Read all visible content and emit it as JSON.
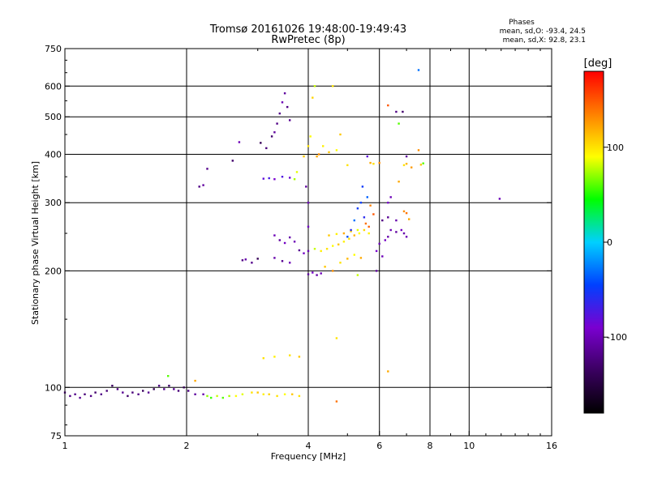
{
  "chart_data": {
    "type": "scatter",
    "title": "Tromsø 20161026 19:48:00-19:49:43",
    "subtitle": "RwPretec (8p)",
    "xlabel": "Frequency [MHz]",
    "ylabel": "Stationary phase Virtual Height [km]",
    "x_scale": "log",
    "y_scale": "log",
    "xlim": [
      1,
      16
    ],
    "ylim": [
      75,
      750
    ],
    "x_ticks": [
      1,
      2,
      4,
      6,
      8,
      10,
      16
    ],
    "y_ticks": [
      75,
      100,
      200,
      300,
      400,
      500,
      600,
      750
    ],
    "grid": true,
    "stats": {
      "heading": "Phases",
      "line_o": "mean, sd,O:  -93.4, 24.5",
      "line_x": "mean, sd,X:  92.8, 23.1"
    },
    "colorbar": {
      "label": "[deg]",
      "range": [
        -180,
        180
      ],
      "ticks": [
        -100,
        0,
        100
      ],
      "colors": [
        "#000000",
        "#3a0060",
        "#7a00d0",
        "#0040ff",
        "#00d0ff",
        "#00ff00",
        "#ffff00",
        "#ff8000",
        "#ff0000"
      ]
    },
    "series": [
      {
        "points": [
          [
            1.0,
            97,
            -115
          ],
          [
            1.03,
            95,
            -120
          ],
          [
            1.06,
            96,
            -118
          ],
          [
            1.09,
            94,
            -115
          ],
          [
            1.12,
            96,
            -125
          ],
          [
            1.16,
            95,
            -120
          ],
          [
            1.19,
            97,
            -130
          ],
          [
            1.23,
            96,
            -118
          ],
          [
            1.27,
            98,
            -125
          ],
          [
            1.31,
            101,
            -135
          ],
          [
            1.35,
            99,
            -122
          ],
          [
            1.39,
            97,
            -115
          ],
          [
            1.43,
            95,
            -130
          ],
          [
            1.47,
            97,
            -125
          ],
          [
            1.52,
            96,
            -120
          ],
          [
            1.56,
            98,
            -135
          ],
          [
            1.61,
            97,
            -115
          ],
          [
            1.66,
            99,
            -140
          ],
          [
            1.71,
            101,
            -120
          ],
          [
            1.76,
            99,
            -118
          ],
          [
            1.81,
            101,
            -130
          ],
          [
            1.86,
            99,
            -115
          ],
          [
            1.91,
            98,
            -125
          ],
          [
            1.97,
            100,
            -140
          ],
          [
            2.02,
            98,
            -120
          ],
          [
            2.1,
            96,
            -110
          ],
          [
            2.2,
            96,
            -105
          ],
          [
            2.25,
            95,
            70
          ],
          [
            2.3,
            94,
            55
          ],
          [
            2.38,
            95,
            80
          ],
          [
            2.46,
            94,
            60
          ],
          [
            2.55,
            95,
            75
          ],
          [
            2.65,
            95,
            90
          ],
          [
            2.75,
            96,
            85
          ],
          [
            2.9,
            97,
            100
          ],
          [
            3.0,
            97,
            110
          ],
          [
            3.1,
            96,
            95
          ],
          [
            3.2,
            96,
            105
          ],
          [
            3.35,
            95,
            100
          ],
          [
            3.5,
            96,
            90
          ],
          [
            3.65,
            96,
            110
          ],
          [
            3.8,
            95,
            100
          ],
          [
            1.8,
            107,
            60
          ],
          [
            2.1,
            104,
            120
          ],
          [
            3.1,
            119,
            100
          ],
          [
            3.3,
            120,
            95
          ],
          [
            3.6,
            121,
            100
          ],
          [
            3.8,
            120,
            110
          ],
          [
            2.15,
            330,
            -120
          ],
          [
            2.2,
            333,
            -110
          ],
          [
            2.25,
            367,
            -118
          ],
          [
            2.6,
            385,
            -130
          ],
          [
            2.7,
            430,
            -100
          ],
          [
            2.75,
            213,
            -120
          ],
          [
            2.8,
            214,
            -105
          ],
          [
            2.9,
            210,
            -118
          ],
          [
            3.0,
            215,
            -140
          ],
          [
            3.05,
            428,
            -140
          ],
          [
            3.15,
            415,
            -125
          ],
          [
            3.25,
            445,
            -130
          ],
          [
            3.3,
            456,
            -110
          ],
          [
            3.35,
            480,
            -120
          ],
          [
            3.4,
            510,
            -118
          ],
          [
            3.45,
            545,
            -100
          ],
          [
            3.5,
            575,
            -110
          ],
          [
            3.55,
            530,
            -120
          ],
          [
            3.6,
            490,
            -115
          ],
          [
            3.1,
            346,
            -80
          ],
          [
            3.2,
            347,
            -70
          ],
          [
            3.3,
            345,
            -90
          ],
          [
            3.45,
            350,
            -75
          ],
          [
            3.6,
            348,
            -85
          ],
          [
            3.7,
            345,
            75
          ],
          [
            3.75,
            360,
            85
          ],
          [
            3.9,
            395,
            110
          ],
          [
            4.0,
            420,
            100
          ],
          [
            4.05,
            445,
            90
          ],
          [
            4.1,
            560,
            105
          ],
          [
            4.15,
            600,
            80
          ],
          [
            4.2,
            395,
            120
          ],
          [
            4.25,
            400,
            130
          ],
          [
            4.35,
            420,
            95
          ],
          [
            4.5,
            405,
            110
          ],
          [
            3.95,
            330,
            -110
          ],
          [
            4.0,
            300,
            -100
          ],
          [
            4.0,
            260,
            -95
          ],
          [
            3.3,
            247,
            -100
          ],
          [
            3.4,
            240,
            -110
          ],
          [
            3.5,
            236,
            -95
          ],
          [
            3.6,
            244,
            -105
          ],
          [
            3.7,
            238,
            -100
          ],
          [
            3.8,
            226,
            -115
          ],
          [
            3.9,
            222,
            -95
          ],
          [
            4.0,
            225,
            -100
          ],
          [
            3.3,
            216,
            -105
          ],
          [
            3.45,
            212,
            -115
          ],
          [
            3.6,
            210,
            -100
          ],
          [
            4.0,
            196,
            -110
          ],
          [
            4.1,
            198,
            -95
          ],
          [
            4.2,
            195,
            -105
          ],
          [
            4.3,
            197,
            -100
          ],
          [
            4.15,
            228,
            80
          ],
          [
            4.3,
            225,
            95
          ],
          [
            4.45,
            228,
            100
          ],
          [
            4.6,
            232,
            90
          ],
          [
            4.75,
            234,
            110
          ],
          [
            4.9,
            238,
            95
          ],
          [
            5.05,
            242,
            100
          ],
          [
            5.2,
            247,
            115
          ],
          [
            5.35,
            250,
            90
          ],
          [
            5.5,
            255,
            105
          ],
          [
            5.65,
            250,
            95
          ],
          [
            4.5,
            247,
            110
          ],
          [
            4.7,
            249,
            95
          ],
          [
            4.9,
            250,
            120
          ],
          [
            5.1,
            253,
            105
          ],
          [
            5.3,
            255,
            85
          ],
          [
            4.4,
            205,
            110
          ],
          [
            4.6,
            200,
            130
          ],
          [
            4.8,
            210,
            100
          ],
          [
            5.0,
            215,
            115
          ],
          [
            5.2,
            220,
            90
          ],
          [
            5.4,
            216,
            120
          ],
          [
            5.0,
            245,
            -40
          ],
          [
            5.1,
            255,
            -60
          ],
          [
            5.2,
            270,
            -30
          ],
          [
            5.3,
            290,
            -50
          ],
          [
            5.4,
            300,
            -45
          ],
          [
            5.5,
            275,
            -60
          ],
          [
            5.6,
            310,
            -35
          ],
          [
            5.45,
            330,
            -50
          ],
          [
            5.55,
            265,
            140
          ],
          [
            5.7,
            295,
            135
          ],
          [
            5.8,
            280,
            150
          ],
          [
            5.65,
            260,
            145
          ],
          [
            5.9,
            225,
            -90
          ],
          [
            6.0,
            235,
            -100
          ],
          [
            5.9,
            200,
            -110
          ],
          [
            6.1,
            218,
            -100
          ],
          [
            6.2,
            240,
            -95
          ],
          [
            6.3,
            245,
            -105
          ],
          [
            6.4,
            255,
            -100
          ],
          [
            6.6,
            252,
            -110
          ],
          [
            6.8,
            255,
            -95
          ],
          [
            6.9,
            250,
            -105
          ],
          [
            7.0,
            245,
            -100
          ],
          [
            6.1,
            270,
            -120
          ],
          [
            6.3,
            275,
            -115
          ],
          [
            6.6,
            270,
            -105
          ],
          [
            6.9,
            285,
            130
          ],
          [
            7.0,
            282,
            140
          ],
          [
            7.1,
            272,
            120
          ],
          [
            6.3,
            300,
            -90
          ],
          [
            6.4,
            310,
            -100
          ],
          [
            6.7,
            340,
            120
          ],
          [
            6.9,
            375,
            100
          ],
          [
            7.0,
            378,
            115
          ],
          [
            7.2,
            370,
            125
          ],
          [
            7.6,
            376,
            110
          ],
          [
            7.7,
            379,
            60
          ],
          [
            7.5,
            410,
            130
          ],
          [
            5.6,
            395,
            -80
          ],
          [
            5.7,
            380,
            120
          ],
          [
            6.0,
            380,
            130
          ],
          [
            5.8,
            378,
            100
          ],
          [
            6.3,
            535,
            150
          ],
          [
            6.6,
            515,
            -120
          ],
          [
            6.85,
            515,
            -130
          ],
          [
            6.7,
            480,
            60
          ],
          [
            7.0,
            395,
            -110
          ],
          [
            7.5,
            660,
            -30
          ],
          [
            11.9,
            307,
            -100
          ],
          [
            4.6,
            600,
            100
          ],
          [
            4.8,
            450,
            110
          ],
          [
            4.7,
            410,
            90
          ],
          [
            5.0,
            375,
            100
          ],
          [
            4.7,
            134,
            100
          ],
          [
            6.3,
            110,
            120
          ],
          [
            4.7,
            92,
            140
          ],
          [
            5.3,
            195,
            80
          ]
        ]
      }
    ]
  }
}
